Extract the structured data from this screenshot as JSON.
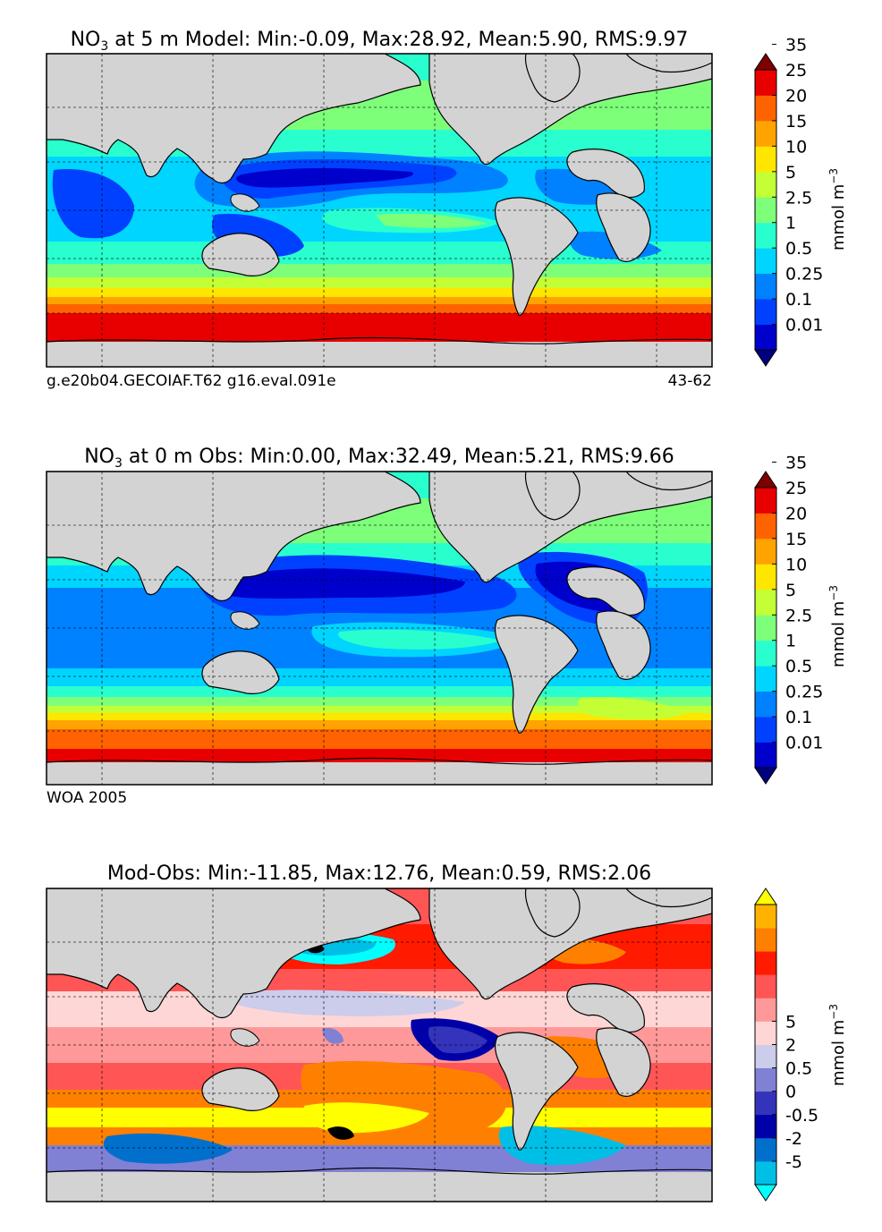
{
  "chart_data": [
    {
      "type": "heatmap",
      "title": {
        "prefix": "NO",
        "subscript": "3",
        "rest": " at 5 m Model: Min:-0.09, Max:28.92, Mean:5.90, RMS:9.97"
      },
      "min": -0.09,
      "max": 28.92,
      "mean": 5.9,
      "rms": 9.97,
      "depth": "5 m",
      "footer_left": "g.e20b04.GECOIAF.T62 g16.eval.091e",
      "footer_right": "43-62",
      "colorbar": {
        "label_main": "mmol m",
        "label_exp": "−3",
        "ticks": [
          "0.01",
          "0.1",
          "0.25",
          "0.5",
          "1",
          "2.5",
          "5",
          "10",
          "15",
          "20",
          "25",
          "35"
        ],
        "colors": [
          "#00007f",
          "#0000cd",
          "#0041ff",
          "#0081ff",
          "#00d5ff",
          "#29ffce",
          "#7dff7a",
          "#c3ff34",
          "#ffe600",
          "#ffa300",
          "#ff6300",
          "#e80000",
          "#7f0000"
        ]
      }
    },
    {
      "type": "heatmap",
      "title": {
        "prefix": "NO",
        "subscript": "3",
        "rest": " at 0 m Obs: Min:0.00, Max:32.49, Mean:5.21, RMS:9.66"
      },
      "min": 0.0,
      "max": 32.49,
      "mean": 5.21,
      "rms": 9.66,
      "depth": "0 m",
      "footer_left": "WOA 2005",
      "footer_right": "",
      "colorbar": {
        "label_main": "mmol m",
        "label_exp": "−3",
        "ticks": [
          "0.01",
          "0.1",
          "0.25",
          "0.5",
          "1",
          "2.5",
          "5",
          "10",
          "15",
          "20",
          "25",
          "35"
        ],
        "colors": [
          "#00007f",
          "#0000cd",
          "#0041ff",
          "#0081ff",
          "#00d5ff",
          "#29ffce",
          "#7dff7a",
          "#c3ff34",
          "#ffe600",
          "#ffa300",
          "#ff6300",
          "#e80000",
          "#7f0000"
        ]
      }
    },
    {
      "type": "heatmap",
      "title": {
        "prefix": "",
        "subscript": "",
        "rest": "Mod-Obs: Min:-11.85, Max:12.76, Mean:0.59, RMS:2.06"
      },
      "min": -11.85,
      "max": 12.76,
      "mean": 0.59,
      "rms": 2.06,
      "footer_left": "",
      "footer_right": "",
      "colorbar": {
        "label_main": "mmol m",
        "label_exp": "−3",
        "ticks": [
          "-5",
          "-2",
          "-0.5",
          "0",
          "0.5",
          "2",
          "5"
        ],
        "colors": [
          "#00ffff",
          "#00bfe6",
          "#0070cc",
          "#0000a8",
          "#3333bb",
          "#8080d5",
          "#cccceb",
          "#ffd6d6",
          "#ff9999",
          "#ff5555",
          "#ff1a00",
          "#ff8000",
          "#ffb300",
          "#ffff00"
        ]
      }
    }
  ]
}
